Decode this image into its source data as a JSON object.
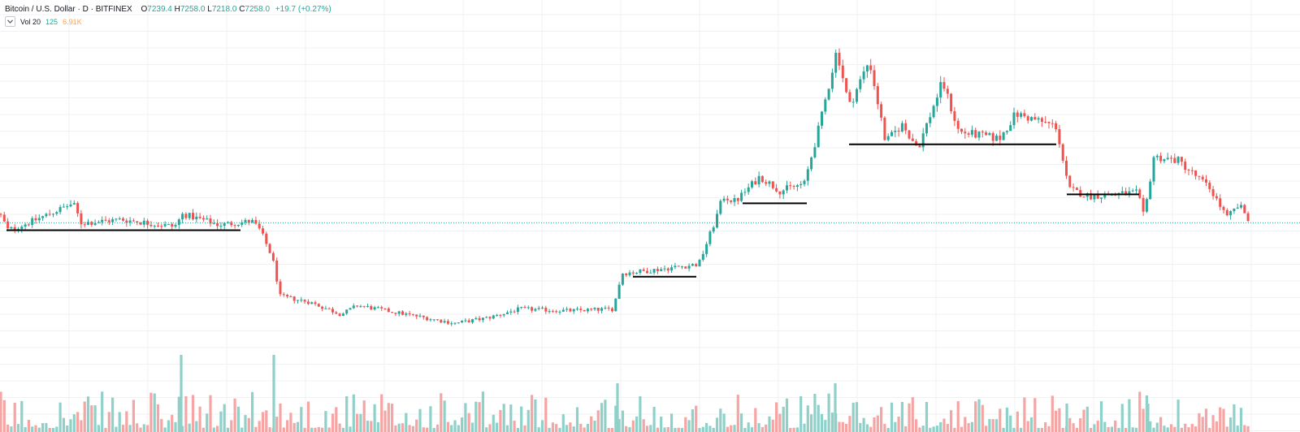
{
  "legend": {
    "symbol": "Bitcoin / U.S. Dollar · D · BITFINEX",
    "open_key": "O",
    "open": "7239.4",
    "high_key": "H",
    "high": "7258.0",
    "low_key": "L",
    "low": "7218.0",
    "close_key": "C",
    "close": "7258.0",
    "change": "+19.7 (+0.27%)"
  },
  "volume_indicator": {
    "collapse_icon": "chevron-down-icon",
    "label": "Vol 20",
    "value1": "125",
    "value2": "6.91K"
  },
  "colors": {
    "up": "#26a69a",
    "down": "#ef5350",
    "vol_up": "#8fd1c9",
    "vol_down": "#f5a5a3",
    "grid": "#eef2f4",
    "price_line": "#26a69a",
    "support_lines": "#000000"
  },
  "chart_data": {
    "type": "candlestick",
    "symbol": "BTCUSD",
    "exchange": "BITFINEX",
    "interval": "D",
    "last_ohlc": {
      "open": 7239.4,
      "high": 7258.0,
      "low": 7218.0,
      "close": 7258.0
    },
    "price_keypoints": [
      [
        0,
        7500
      ],
      [
        10,
        7050
      ],
      [
        40,
        7300
      ],
      [
        90,
        7800
      ],
      [
        100,
        7250
      ],
      [
        150,
        7350
      ],
      [
        215,
        7150
      ],
      [
        225,
        7500
      ],
      [
        270,
        7200
      ],
      [
        310,
        7300
      ],
      [
        320,
        7050
      ],
      [
        335,
        6300
      ],
      [
        345,
        5200
      ],
      [
        380,
        5050
      ],
      [
        420,
        4700
      ],
      [
        440,
        4950
      ],
      [
        500,
        4700
      ],
      [
        560,
        4450
      ],
      [
        600,
        4600
      ],
      [
        640,
        4850
      ],
      [
        700,
        4800
      ],
      [
        755,
        4850
      ],
      [
        765,
        5850
      ],
      [
        790,
        5900
      ],
      [
        860,
        6100
      ],
      [
        880,
        7300
      ],
      [
        890,
        8000
      ],
      [
        905,
        7850
      ],
      [
        935,
        8550
      ],
      [
        960,
        8150
      ],
      [
        990,
        8350
      ],
      [
        1010,
        10100
      ],
      [
        1030,
        12100
      ],
      [
        1045,
        10500
      ],
      [
        1070,
        11800
      ],
      [
        1090,
        9500
      ],
      [
        1110,
        10000
      ],
      [
        1130,
        9350
      ],
      [
        1160,
        11200
      ],
      [
        1180,
        9800
      ],
      [
        1230,
        9600
      ],
      [
        1250,
        10300
      ],
      [
        1300,
        9950
      ],
      [
        1315,
        8200
      ],
      [
        1340,
        8000
      ],
      [
        1400,
        8100
      ],
      [
        1408,
        7400
      ],
      [
        1420,
        9100
      ],
      [
        1450,
        9000
      ],
      [
        1490,
        8200
      ],
      [
        1510,
        7400
      ],
      [
        1525,
        7750
      ],
      [
        1540,
        7258
      ]
    ],
    "volume_spikes": [
      [
        223,
        95
      ],
      [
        337,
        95
      ],
      [
        760,
        60
      ],
      [
        1028,
        60
      ],
      [
        1313,
        35
      ],
      [
        1413,
        35
      ]
    ],
    "support_lines": [
      {
        "x1": 8,
        "x2": 296,
        "price": 7050
      },
      {
        "x1": 779,
        "x2": 857,
        "price": 5750
      },
      {
        "x1": 914,
        "x2": 993,
        "price": 7800
      },
      {
        "x1": 1045,
        "x2": 1300,
        "price": 9450
      },
      {
        "x1": 1313,
        "x2": 1402,
        "price": 8050
      }
    ],
    "current_price_line": 7258,
    "ylim": [
      3500,
      12800
    ],
    "grid": true
  }
}
